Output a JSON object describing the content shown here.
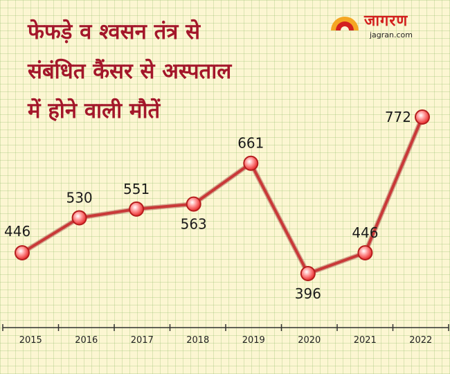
{
  "headline": {
    "lines": [
      "फेफड़े व श्वसन तंत्र से",
      "संबंधित कैंसर से अस्पताल",
      "में होने वाली मौतें"
    ]
  },
  "brand": {
    "name": "जागरण",
    "domain": "jagran.com",
    "colors": {
      "primary": "#d3201f",
      "sun": "#f5a623"
    }
  },
  "colors": {
    "headline": "#a3162a",
    "line": "#c93838",
    "marker": "#e83030",
    "background": "#fcf6d2",
    "grid": "#b7cf8a"
  },
  "chart_data": {
    "type": "line",
    "title": "फेफड़े व श्वसन तंत्र से संबंधित कैंसर से अस्पताल में होने वाली मौतें",
    "categories": [
      "2015",
      "2016",
      "2017",
      "2018",
      "2019",
      "2020",
      "2021",
      "2022"
    ],
    "series": [
      {
        "name": "मौतें",
        "values": [
          446,
          530,
          551,
          563,
          661,
          396,
          446,
          772
        ]
      }
    ],
    "label_position": [
      "above",
      "above",
      "above",
      "below",
      "above",
      "below",
      "above",
      "left"
    ],
    "xlabel": "",
    "ylabel": "",
    "grid": true
  }
}
